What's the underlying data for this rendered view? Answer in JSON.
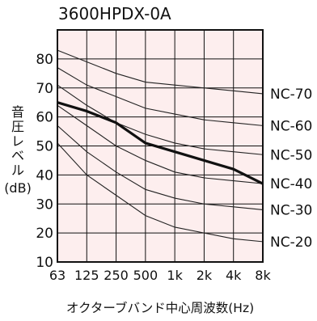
{
  "chart_data": {
    "type": "line",
    "title": "3600HPDX-0A",
    "xlabel": "オクターブバンド中心周波数(Hz)",
    "ylabel_chars": [
      "音",
      "圧",
      "レ",
      "ベ",
      "ル"
    ],
    "ylabel_unit": "(dB)",
    "categories": [
      "63",
      "125",
      "250",
      "500",
      "1k",
      "2k",
      "4k",
      "8k"
    ],
    "ylim": [
      10,
      90
    ],
    "yticks": [
      10,
      20,
      30,
      40,
      50,
      60,
      70,
      80
    ],
    "grid": true,
    "colors": {
      "plot_background": "#fdeeee",
      "grid": "#111111",
      "nc_curve": "#222222",
      "product_curve": "#111111"
    },
    "nc_curves": [
      {
        "name": "NC-70",
        "values": [
          83,
          79,
          75,
          72,
          71,
          70,
          69,
          68
        ]
      },
      {
        "name": "NC-60",
        "values": [
          77,
          71,
          67,
          63,
          61,
          59,
          58,
          57
        ]
      },
      {
        "name": "NC-50",
        "values": [
          71,
          64,
          58,
          54,
          51,
          49,
          48,
          47
        ]
      },
      {
        "name": "NC-40",
        "values": [
          64,
          57,
          50,
          45,
          41,
          39,
          38,
          37
        ]
      },
      {
        "name": "NC-30",
        "values": [
          57,
          48,
          41,
          35,
          32,
          30,
          29,
          28
        ]
      },
      {
        "name": "NC-20",
        "values": [
          51,
          40,
          33,
          26,
          22,
          20,
          18,
          17
        ]
      }
    ],
    "series": [
      {
        "name": "",
        "values": [
          65,
          62,
          58,
          51,
          48,
          45,
          42,
          37
        ]
      }
    ]
  }
}
